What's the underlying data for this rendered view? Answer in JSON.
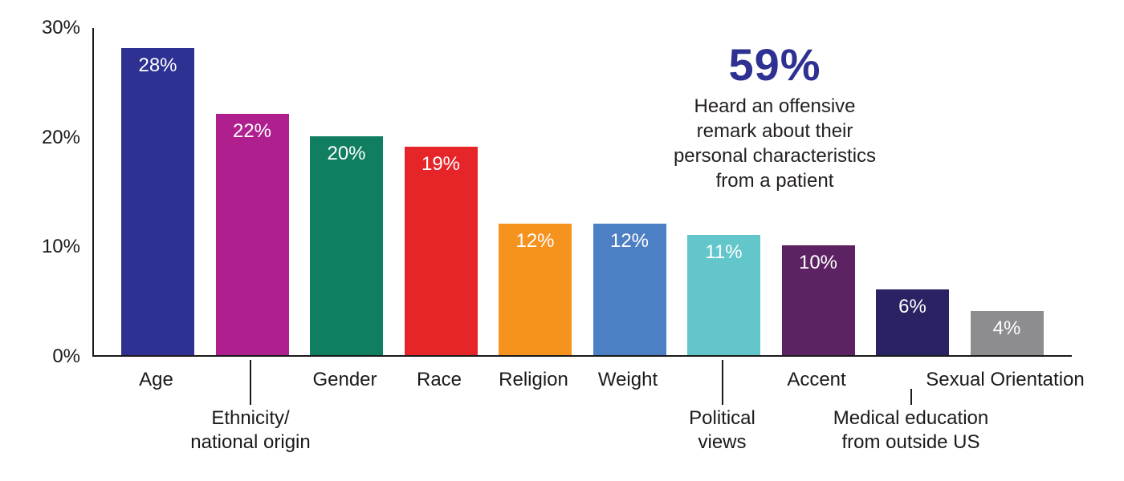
{
  "chart_data": {
    "type": "bar",
    "title": "",
    "categories": [
      "Age",
      "Ethnicity/\nnational origin",
      "Gender",
      "Race",
      "Religion",
      "Weight",
      "Political\nviews",
      "Accent",
      "Medical education\nfrom outside US",
      "Sexual Orientation"
    ],
    "values": [
      28,
      22,
      20,
      19,
      12,
      12,
      11,
      10,
      6,
      4
    ],
    "bar_labels": [
      "28%",
      "22%",
      "20%",
      "19%",
      "12%",
      "12%",
      "11%",
      "10%",
      "6%",
      "4%"
    ],
    "bar_colors": [
      "#2e3192",
      "#b01f8e",
      "#0f7e61",
      "#e62529",
      "#f6921e",
      "#4d7fc4",
      "#63c6cb",
      "#5d2262",
      "#292363",
      "#8d8d90"
    ],
    "label_row": [
      1,
      2,
      1,
      1,
      1,
      1,
      2,
      1,
      2,
      1
    ],
    "y_tick_labels": [
      "0%",
      "10%",
      "20%",
      "30%"
    ],
    "ylim": [
      0,
      30
    ],
    "grid": false,
    "legend": false,
    "xlabel": "",
    "ylabel": "",
    "bar_value_text_color": "#ffffff",
    "axis_color": "#1a1a1a",
    "annotation": {
      "value": "59%",
      "value_color": "#2e3192",
      "text": "Heard an offensive\nremark about their\npersonal characteristics\nfrom a patient",
      "text_color": "#231f20"
    }
  }
}
